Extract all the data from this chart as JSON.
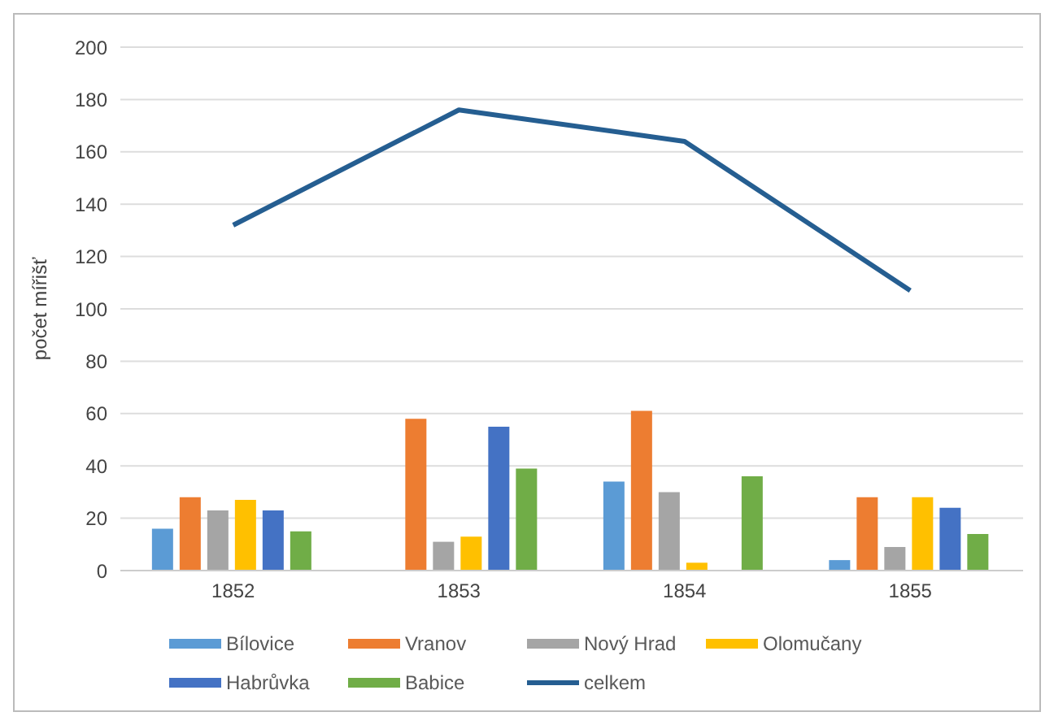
{
  "chart_data": {
    "type": "bar",
    "ylabel": "počet mířišť",
    "categories": [
      "1852",
      "1853",
      "1854",
      "1855"
    ],
    "ylim": [
      0,
      200
    ],
    "yticks": [
      0,
      20,
      40,
      60,
      80,
      100,
      120,
      140,
      160,
      180,
      200
    ],
    "grid": "y",
    "legend": "bottom",
    "series": [
      {
        "name": "Bílovice",
        "color": "#5b9bd5",
        "values": [
          16,
          null,
          34,
          4
        ]
      },
      {
        "name": "Vranov",
        "color": "#ed7d31",
        "values": [
          28,
          58,
          61,
          28
        ]
      },
      {
        "name": "Nový Hrad",
        "color": "#a5a5a5",
        "values": [
          23,
          11,
          30,
          9
        ]
      },
      {
        "name": "Olomučany",
        "color": "#ffc000",
        "values": [
          27,
          13,
          3,
          28
        ]
      },
      {
        "name": "Habrůvka",
        "color": "#4472c4",
        "values": [
          23,
          55,
          null,
          24
        ]
      },
      {
        "name": "Babice",
        "color": "#70ad47",
        "values": [
          15,
          39,
          36,
          14
        ]
      },
      {
        "name": "celkem",
        "type": "line",
        "color": "#255e91",
        "values": [
          132,
          176,
          164,
          107
        ]
      }
    ]
  }
}
